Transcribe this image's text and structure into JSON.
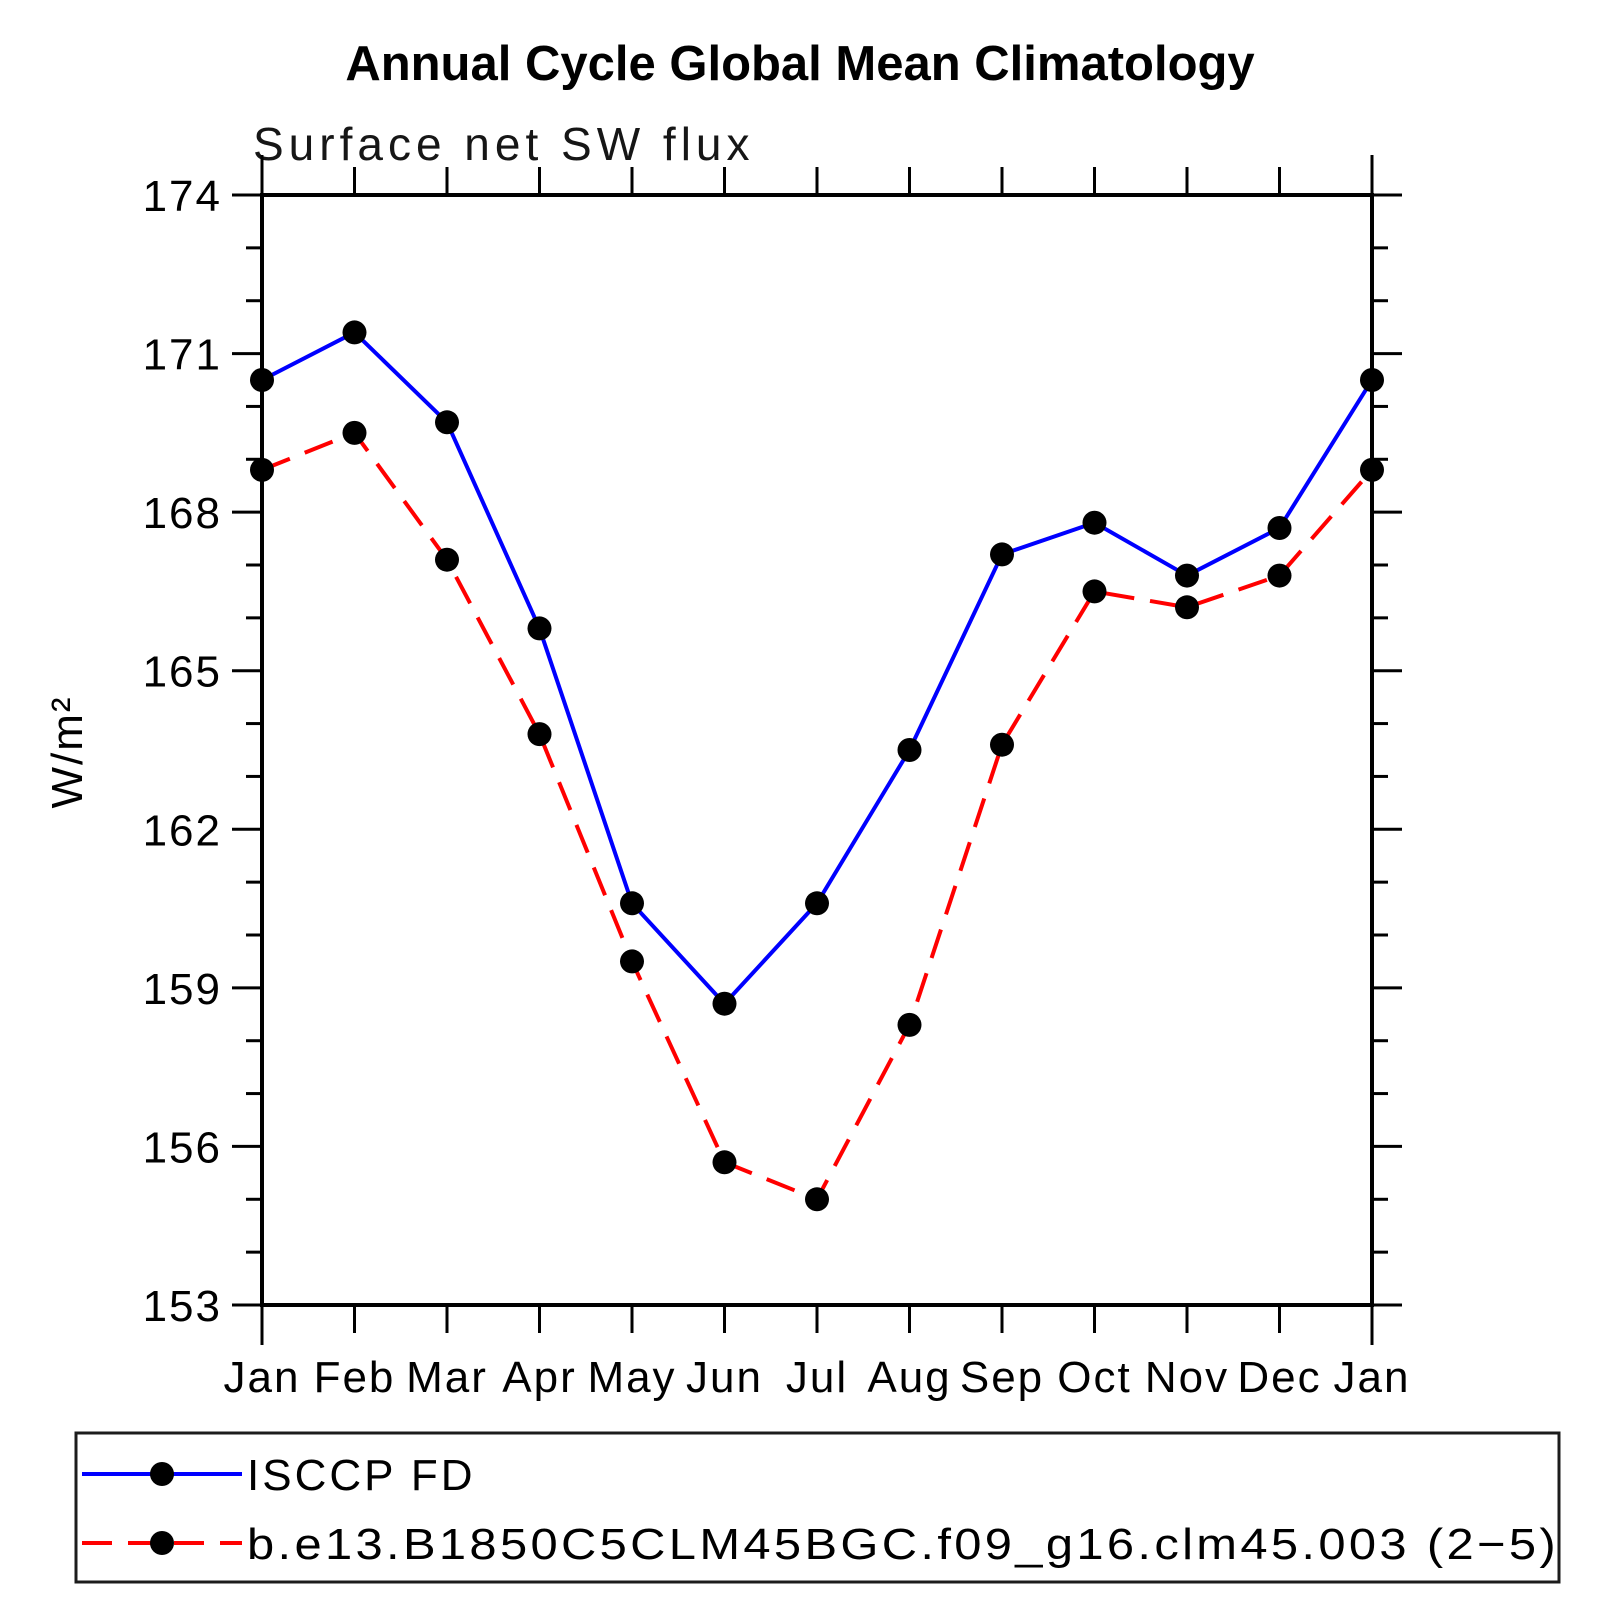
{
  "title": "Annual Cycle Global Mean Climatology",
  "subtitle": "Surface net SW flux",
  "y_axis_label": "W/m²",
  "legend": {
    "position": "bottom",
    "items": [
      {
        "label": "ISCCP FD",
        "color": "#0000ff",
        "style": "solid",
        "marker_color": "#000000"
      },
      {
        "label": "b.e13.B1850C5CLM45BGC.f09_g16.clm45.003 (2−5)",
        "color": "#ff0000",
        "style": "dashed",
        "marker_color": "#000000"
      }
    ]
  },
  "chart_data": {
    "type": "line",
    "title": "Annual Cycle Global Mean Climatology",
    "subtitle": "Surface net SW flux",
    "ylabel": "W/m²",
    "categories": [
      "Jan",
      "Feb",
      "Mar",
      "Apr",
      "May",
      "Jun",
      "Jul",
      "Aug",
      "Sep",
      "Oct",
      "Nov",
      "Dec",
      "Jan"
    ],
    "series": [
      {
        "name": "ISCCP FD",
        "color": "#0000ff",
        "line_style": "solid",
        "marker": "filled-circle",
        "marker_color": "#000000",
        "values": [
          170.5,
          171.4,
          169.7,
          165.8,
          160.6,
          158.7,
          160.6,
          163.5,
          167.2,
          167.8,
          166.8,
          167.7,
          170.5
        ]
      },
      {
        "name": "b.e13.B1850C5CLM45BGC.f09_g16.clm45.003 (2−5)",
        "color": "#ff0000",
        "line_style": "dashed",
        "marker": "filled-circle",
        "marker_color": "#000000",
        "values": [
          168.8,
          169.5,
          167.1,
          163.8,
          159.5,
          155.7,
          155.0,
          158.3,
          163.6,
          166.5,
          166.2,
          166.8,
          168.8
        ]
      }
    ],
    "ylim": [
      153,
      174
    ],
    "y_major_ticks": [
      153,
      156,
      159,
      162,
      165,
      168,
      171,
      174
    ],
    "y_minor_step": 1,
    "grid": false,
    "units": "W/m²",
    "legend_position": "bottom"
  }
}
